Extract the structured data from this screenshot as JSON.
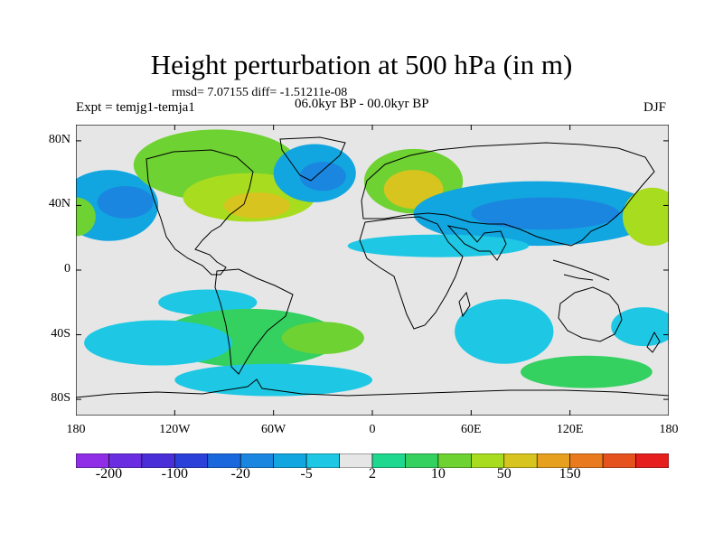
{
  "title": "Height perturbation at 500 hPa (in m)",
  "stats_line": "rmsd= 7.07155 diff= -1.51211e-08",
  "period": "06.0kyr BP - 00.0kyr BP",
  "experiment": "Expt = temjg1-temja1",
  "season": "DJF",
  "y_ticks": [
    {
      "label": "80N",
      "lat": 80
    },
    {
      "label": "40N",
      "lat": 40
    },
    {
      "label": "0",
      "lat": 0
    },
    {
      "label": "40S",
      "lat": -40
    },
    {
      "label": "80S",
      "lat": -80
    }
  ],
  "x_ticks": [
    {
      "label": "180",
      "lon": -180
    },
    {
      "label": "120W",
      "lon": -120
    },
    {
      "label": "60W",
      "lon": -60
    },
    {
      "label": "0",
      "lon": 0
    },
    {
      "label": "60E",
      "lon": 60
    },
    {
      "label": "120E",
      "lon": 120
    },
    {
      "label": "180",
      "lon": 180
    }
  ],
  "colorbar": {
    "colors": [
      "#8f2ee6",
      "#6a2ee0",
      "#4a2ed8",
      "#2b40d8",
      "#1a66dc",
      "#1a86e0",
      "#12a6e0",
      "#1ec8e4",
      "#e6e6e6",
      "#1ed890",
      "#34d060",
      "#6ed232",
      "#a8dc1e",
      "#d8c41e",
      "#e6a01e",
      "#ea7a1e",
      "#e6521e",
      "#e61e1e"
    ],
    "labels": [
      {
        "text": "-200",
        "index": 1
      },
      {
        "text": "-100",
        "index": 3
      },
      {
        "text": "-20",
        "index": 5
      },
      {
        "text": "-5",
        "index": 7
      },
      {
        "text": "2",
        "index": 9
      },
      {
        "text": "10",
        "index": 11
      },
      {
        "text": "50",
        "index": 13
      },
      {
        "text": "150",
        "index": 15
      }
    ]
  },
  "fields": [
    {
      "lon": -160,
      "lat": 40,
      "rx": 30,
      "ry": 22,
      "level": 6
    },
    {
      "lon": -150,
      "lat": 42,
      "rx": 17,
      "ry": 10,
      "level": 5
    },
    {
      "lon": -180,
      "lat": 33,
      "rx": 12,
      "ry": 12,
      "level": 11
    },
    {
      "lon": -95,
      "lat": 65,
      "rx": 50,
      "ry": 22,
      "level": 11
    },
    {
      "lon": -75,
      "lat": 45,
      "rx": 40,
      "ry": 15,
      "level": 12
    },
    {
      "lon": -70,
      "lat": 40,
      "rx": 20,
      "ry": 8,
      "level": 13
    },
    {
      "lon": -35,
      "lat": 60,
      "rx": 25,
      "ry": 18,
      "level": 6
    },
    {
      "lon": -30,
      "lat": 58,
      "rx": 14,
      "ry": 9,
      "level": 5
    },
    {
      "lon": 25,
      "lat": 55,
      "rx": 30,
      "ry": 20,
      "level": 11
    },
    {
      "lon": 25,
      "lat": 50,
      "rx": 18,
      "ry": 12,
      "level": 13
    },
    {
      "lon": 100,
      "lat": 35,
      "rx": 75,
      "ry": 20,
      "level": 6
    },
    {
      "lon": 105,
      "lat": 35,
      "rx": 45,
      "ry": 10,
      "level": 5
    },
    {
      "lon": 170,
      "lat": 33,
      "rx": 18,
      "ry": 18,
      "level": 12
    },
    {
      "lon": 40,
      "lat": 15,
      "rx": 55,
      "ry": 7,
      "level": 7
    },
    {
      "lon": -100,
      "lat": -20,
      "rx": 30,
      "ry": 8,
      "level": 7
    },
    {
      "lon": -75,
      "lat": -42,
      "rx": 55,
      "ry": 18,
      "level": 10
    },
    {
      "lon": -30,
      "lat": -42,
      "rx": 25,
      "ry": 10,
      "level": 11
    },
    {
      "lon": -130,
      "lat": -45,
      "rx": 45,
      "ry": 14,
      "level": 7
    },
    {
      "lon": -60,
      "lat": -68,
      "rx": 60,
      "ry": 10,
      "level": 7
    },
    {
      "lon": 80,
      "lat": -38,
      "rx": 30,
      "ry": 20,
      "level": 7
    },
    {
      "lon": 130,
      "lat": -63,
      "rx": 40,
      "ry": 10,
      "level": 10
    },
    {
      "lon": 165,
      "lat": -35,
      "rx": 20,
      "ry": 12,
      "level": 7
    }
  ]
}
